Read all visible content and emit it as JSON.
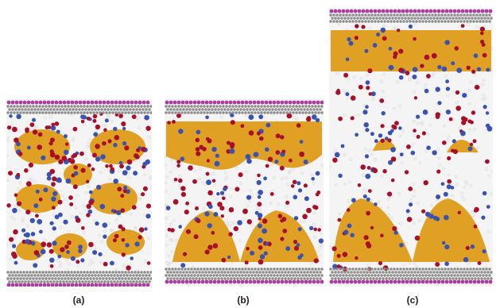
{
  "figure": {
    "panels": [
      {
        "label": "(a)"
      },
      {
        "label": "(b)"
      },
      {
        "label": "(c)"
      }
    ],
    "colors": {
      "background": "#ffffff",
      "water": "#d8d8d8",
      "polymer": "#e0a024",
      "polymer_light": "#f2c24a",
      "ion_red": "#a8102a",
      "ion_blue": "#3a52b0",
      "electrode_atom": "#8c8c8c",
      "electrode_cap": "#b03aa0"
    },
    "icons": [
      "electrode-layer",
      "polymer-domain",
      "ion-particle"
    ]
  }
}
